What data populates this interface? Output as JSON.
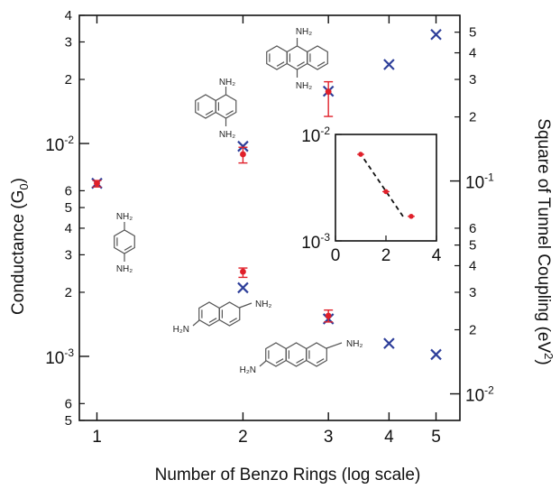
{
  "chart_data": {
    "type": "scatter",
    "title": "",
    "xlabel": "Number of Benzo Rings  (log scale)",
    "ylabel_left": "Conductance (G",
    "ylabel_left_sub": "0",
    "ylabel_left_close": ")",
    "ylabel_right": "Square of Tunnel Coupling (eV",
    "ylabel_right_sup": "2",
    "ylabel_right_close": ")",
    "x_scale": "log",
    "xlim": [
      0.92,
      5.6
    ],
    "x_ticks": [
      1,
      2,
      3,
      4,
      5
    ],
    "x_tick_labels": [
      "1",
      "2",
      "3",
      "4",
      "5"
    ],
    "y_left_scale": "log",
    "y_left_lim": [
      0.0005,
      0.04
    ],
    "y_left_major": [
      {
        "value": 0.001,
        "base": "10",
        "exp": "-3"
      },
      {
        "value": 0.01,
        "base": "10",
        "exp": "-2"
      }
    ],
    "y_left_minor": [
      {
        "value": 0.0005,
        "label": "5"
      },
      {
        "value": 0.0006,
        "label": "6"
      },
      {
        "value": 0.002,
        "label": "2"
      },
      {
        "value": 0.003,
        "label": "3"
      },
      {
        "value": 0.004,
        "label": "4"
      },
      {
        "value": 0.005,
        "label": "5"
      },
      {
        "value": 0.006,
        "label": "6"
      },
      {
        "value": 0.02,
        "label": "2"
      },
      {
        "value": 0.03,
        "label": "3"
      },
      {
        "value": 0.04,
        "label": "4"
      }
    ],
    "y_right_scale": "log",
    "y_right_lim": [
      0.0075,
      0.6
    ],
    "y_right_major": [
      {
        "value": 0.01,
        "base": "10",
        "exp": "-2"
      },
      {
        "value": 0.1,
        "base": "10",
        "exp": "-1"
      }
    ],
    "y_right_minor": [
      {
        "value": 0.02,
        "label": "2"
      },
      {
        "value": 0.3,
        "label": "3"
      },
      {
        "value": 0.03,
        "label": "3"
      },
      {
        "value": 0.04,
        "label": "4"
      },
      {
        "value": 0.06,
        "label": "6"
      },
      {
        "value": 0.05,
        "label": "5"
      },
      {
        "value": 0.2,
        "label": "2"
      },
      {
        "value": 0.4,
        "label": "4"
      },
      {
        "value": 0.5,
        "label": "5"
      }
    ],
    "series": [
      {
        "name": "",
        "kind": "cross",
        "color": "#2e3f9a",
        "points": [
          {
            "x": 1,
            "y": 0.0065
          },
          {
            "x": 2,
            "y": 0.0097
          },
          {
            "x": 2,
            "y": 0.0021
          },
          {
            "x": 3,
            "y": 0.0176
          },
          {
            "x": 3,
            "y": 0.0015
          },
          {
            "x": 4,
            "y": 0.0235
          },
          {
            "x": 4,
            "y": 0.00115
          },
          {
            "x": 5,
            "y": 0.0325
          },
          {
            "x": 5,
            "y": 0.00102
          }
        ]
      },
      {
        "name": "",
        "kind": "dot",
        "color": "#e0202a",
        "points": [
          {
            "x": 1,
            "y": 0.0065,
            "err_low": 0.00625,
            "err_high": 0.0067
          },
          {
            "x": 2,
            "y": 0.0089,
            "err_low": 0.0081,
            "err_high": 0.0096
          },
          {
            "x": 2,
            "y": 0.0025,
            "err_low": 0.00235,
            "err_high": 0.0026
          },
          {
            "x": 3,
            "y": 0.0175,
            "err_low": 0.0134,
            "err_high": 0.0195
          },
          {
            "x": 3,
            "y": 0.00155,
            "err_low": 0.00145,
            "err_high": 0.00165
          }
        ]
      }
    ],
    "inset": {
      "type": "scatter",
      "xlim": [
        0,
        4
      ],
      "x_ticks": [
        0,
        2,
        4
      ],
      "x_tick_labels": [
        "0",
        "2",
        "4"
      ],
      "y_scale": "log",
      "ylim": [
        0.001,
        0.01
      ],
      "y_major": [
        {
          "value": 0.001,
          "base": "10",
          "exp": "-3"
        },
        {
          "value": 0.01,
          "base": "10",
          "exp": "-2"
        }
      ],
      "points": [
        {
          "x": 1,
          "y": 0.0065
        },
        {
          "x": 2,
          "y": 0.0029
        },
        {
          "x": 3,
          "y": 0.0017
        }
      ],
      "fit_line": {
        "x": [
          0.95,
          2.75
        ],
        "y": [
          0.0068,
          0.0016
        ]
      },
      "point_color": "#e0202a"
    },
    "molecule_labels": {
      "benzene": [
        "NH₂",
        "NH₂"
      ],
      "naphth_1_4": [
        "NH₂",
        "NH₂"
      ],
      "anthracene_9_10": [
        "NH₂",
        "NH₂"
      ],
      "naphth_2_6": [
        "NH₂",
        "H₂N"
      ],
      "anthracene_2_6": [
        "NH₂",
        "H₂N"
      ]
    }
  }
}
